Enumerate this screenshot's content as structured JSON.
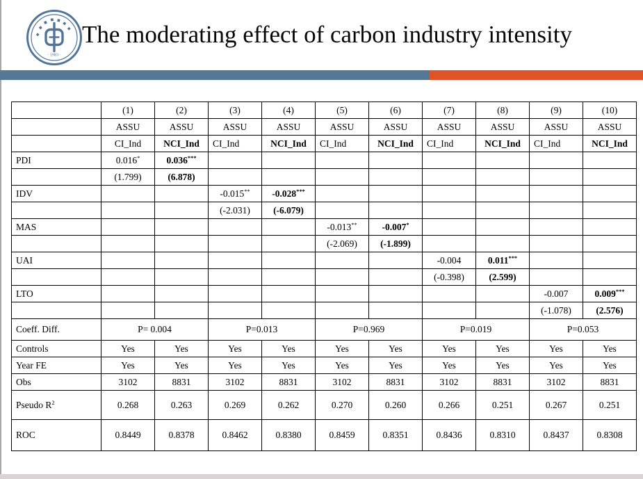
{
  "slide": {
    "title": "The moderating effect of carbon industry intensity",
    "logo": {
      "name": "university-seal",
      "year_text": "· 1983 ·",
      "color": "#527499"
    },
    "divider": {
      "left_color": "#557896",
      "right_color": "#DE5426"
    },
    "footer_color": "#D8D4D4"
  },
  "table": {
    "rows": [
      {
        "h": 24,
        "cells": [
          "",
          "(1)",
          "(2)",
          "(3)",
          "(4)",
          "(5)",
          "(6)",
          "(7)",
          "(8)",
          "(9)",
          "(10)"
        ]
      },
      {
        "h": 24,
        "cells": [
          "",
          "ASSU",
          "ASSU",
          "ASSU",
          "ASSU",
          "ASSU",
          "ASSU",
          "ASSU",
          "ASSU",
          "ASSU",
          "ASSU"
        ]
      },
      {
        "h": 24,
        "cells": [
          "",
          "CI_Ind",
          {
            "t": "NCI_Ind",
            "b": 1
          },
          {
            "t": "CI_Ind",
            "a": "l"
          },
          {
            "t": "NCI_Ind",
            "b": 1
          },
          {
            "t": "CI_Ind",
            "a": "l"
          },
          {
            "t": "NCI_Ind",
            "b": 1
          },
          {
            "t": "CI_Ind",
            "a": "l"
          },
          {
            "t": "NCI_Ind",
            "b": 1
          },
          {
            "t": "CI_Ind",
            "a": "l"
          },
          {
            "t": "NCI_Ind",
            "b": 1
          }
        ]
      },
      {
        "h": 24,
        "cells": [
          "PDI",
          {
            "t": "0.016",
            "s": "*"
          },
          {
            "t": "0.036",
            "s": "***",
            "b": 1
          },
          "",
          "",
          "",
          "",
          "",
          "",
          "",
          ""
        ]
      },
      {
        "h": 24,
        "cells": [
          "",
          "(1.799)",
          {
            "t": "(6.878)",
            "b": 1
          },
          "",
          "",
          "",
          "",
          "",
          "",
          "",
          ""
        ]
      },
      {
        "h": 24,
        "cells": [
          "IDV",
          "",
          "",
          {
            "t": "-0.015",
            "s": "**"
          },
          {
            "t": "-0.028",
            "s": "***",
            "b": 1
          },
          "",
          "",
          "",
          "",
          "",
          ""
        ]
      },
      {
        "h": 24,
        "cells": [
          "",
          "",
          "",
          "(-2.031)",
          {
            "t": "(-6.079)",
            "b": 1
          },
          "",
          "",
          "",
          "",
          "",
          ""
        ]
      },
      {
        "h": 24,
        "cells": [
          "MAS",
          "",
          "",
          "",
          "",
          {
            "t": "-0.013",
            "s": "**"
          },
          {
            "t": "-0.007",
            "s": "*",
            "b": 1
          },
          "",
          "",
          "",
          ""
        ]
      },
      {
        "h": 24,
        "cells": [
          "",
          "",
          "",
          "",
          "",
          "(-2.069)",
          {
            "t": "(-1.899)",
            "b": 1
          },
          "",
          "",
          "",
          ""
        ]
      },
      {
        "h": 24,
        "cells": [
          "UAI",
          "",
          "",
          "",
          "",
          "",
          "",
          "-0.004",
          {
            "t": "0.011",
            "s": "***",
            "b": 1
          },
          "",
          ""
        ]
      },
      {
        "h": 24,
        "cells": [
          "",
          "",
          "",
          "",
          "",
          "",
          "",
          "(-0.398)",
          {
            "t": "(2.599)",
            "b": 1
          },
          "",
          ""
        ]
      },
      {
        "h": 24,
        "cells": [
          "LTO",
          "",
          "",
          "",
          "",
          "",
          "",
          "",
          "",
          "-0.007",
          {
            "t": "0.009",
            "s": "***",
            "b": 1
          }
        ]
      },
      {
        "h": 24,
        "cells": [
          "",
          "",
          "",
          "",
          "",
          "",
          "",
          "",
          "",
          "(-1.078)",
          {
            "t": "(2.576)",
            "b": 1
          }
        ]
      },
      {
        "h": 31,
        "cells": [
          "Coeff. Diff.",
          {
            "t": "P= 0.004",
            "span": 2
          },
          {
            "t": "P=0.013",
            "span": 2
          },
          {
            "t": "P=0.969",
            "span": 2
          },
          {
            "t": "P=0.019",
            "span": 2
          },
          {
            "t": "P=0.053",
            "span": 2
          }
        ]
      },
      {
        "h": 24,
        "cells": [
          "Controls",
          "Yes",
          "Yes",
          "Yes",
          "Yes",
          "Yes",
          "Yes",
          "Yes",
          "Yes",
          "Yes",
          "Yes"
        ]
      },
      {
        "h": 24,
        "cells": [
          "Year FE",
          "Yes",
          "Yes",
          "Yes",
          "Yes",
          "Yes",
          "Yes",
          "Yes",
          "Yes",
          "Yes",
          "Yes"
        ]
      },
      {
        "h": 24,
        "cells": [
          "Obs",
          "3102",
          "8831",
          "3102",
          "8831",
          "3102",
          "8831",
          "3102",
          "8831",
          "3102",
          "8831"
        ]
      },
      {
        "h": 42,
        "cells": [
          {
            "t": "Pseudo R",
            "s": "2"
          },
          "0.268",
          "0.263",
          "0.269",
          "0.262",
          "0.270",
          "0.260",
          "0.266",
          "0.251",
          "0.267",
          "0.251"
        ]
      },
      {
        "h": 45,
        "cells": [
          "ROC",
          "0.8449",
          "0.8378",
          "0.8462",
          "0.8380",
          "0.8459",
          "0.8351",
          "0.8436",
          "0.8310",
          "0.8437",
          "0.8308"
        ]
      }
    ]
  }
}
